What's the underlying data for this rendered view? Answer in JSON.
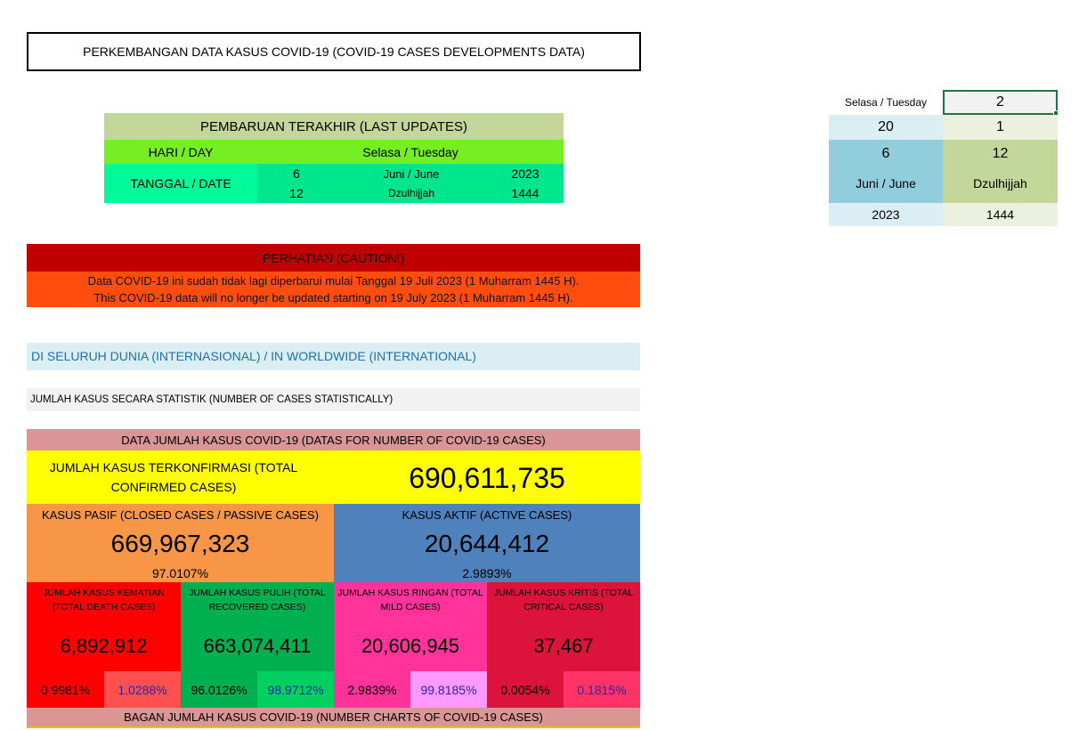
{
  "header": {
    "title": "PERKEMBANGAN DATA KASUS COVID-19 (COVID-19 CASES DEVELOPMENTS DATA)"
  },
  "last_update": {
    "title": "PEMBARUAN TERAKHIR (LAST UPDATES)",
    "day_label": "HARI / DAY",
    "day_value": "Selasa / Tuesday",
    "date_label": "TANGGAL / DATE",
    "gregorian": {
      "day": "6",
      "month": "Juni / June",
      "year": "2023"
    },
    "hijri": {
      "day": "12",
      "month": "Dzulhijjah",
      "year": "1444"
    }
  },
  "side_panel": {
    "day_name": "Selasa / Tuesday",
    "day_index": "2",
    "century": "20",
    "weekday_offset": "1",
    "g_day": "6",
    "h_day": "12",
    "g_month": "Juni / June",
    "h_month": "Dzulhijjah",
    "g_year": "2023",
    "h_year": "1444"
  },
  "caution": {
    "title": "PERHATIAN (CAUTION!)",
    "line1": "Data COVID-19 ini sudah tidak lagi diperbarui mulai Tanggal 19 Juli 2023 (1 Muharram 1445 H).",
    "line2": "This COVID-19 data will no longer be updated starting on 19 July 2023 (1 Muharram 1445 H)."
  },
  "worldwide": {
    "heading": "DI SELURUH DUNIA (INTERNASIONAL) / IN WORLDWIDE (INTERNATIONAL)",
    "stat_heading": "JUMLAH KASUS SECARA STATISTIK (NUMBER OF CASES STATISTICALLY)"
  },
  "cases": {
    "header": "DATA JUMLAH KASUS COVID-19 (DATAS FOR NUMBER OF COVID-19 CASES)",
    "confirmed_label": "JUMLAH KASUS TERKONFIRMASI (TOTAL CONFIRMED CASES)",
    "confirmed_value": "690,611,735",
    "closed_label": "KASUS PASIF (CLOSED CASES / PASSIVE CASES)",
    "closed_value": "669,967,323",
    "closed_pct": "97.0107%",
    "active_label": "KASUS AKTIF (ACTIVE CASES)",
    "active_value": "20,644,412",
    "active_pct": "2.9893%",
    "death_label": "JUMLAH KASUS KEMATIAN (TOTAL DEATH CASES)",
    "death_value": "6,892,912",
    "death_pct1": "0.9981%",
    "death_pct2": "1.0288%",
    "recovered_label": "JUMLAH KASUS PULIH (TOTAL RECOVERED CASES)",
    "recovered_value": "663,074,411",
    "recovered_pct1": "96.0126%",
    "recovered_pct2": "98.9712%",
    "mild_label": "JUMLAH KASUS RINGAN (TOTAL MILD CASES)",
    "mild_value": "20,606,945",
    "mild_pct1": "2.9839%",
    "mild_pct2": "99.8185%",
    "critical_label": "JUMLAH KASUS KRITIS (TOTAL CRITICAL CASES)",
    "critical_value": "37,467",
    "critical_pct1": "0.0054%",
    "critical_pct2": "0.1815%",
    "charts_header": "BAGAN JUMLAH KASUS COVID-19 (NUMBER CHARTS OF COVID-19 CASES)"
  }
}
